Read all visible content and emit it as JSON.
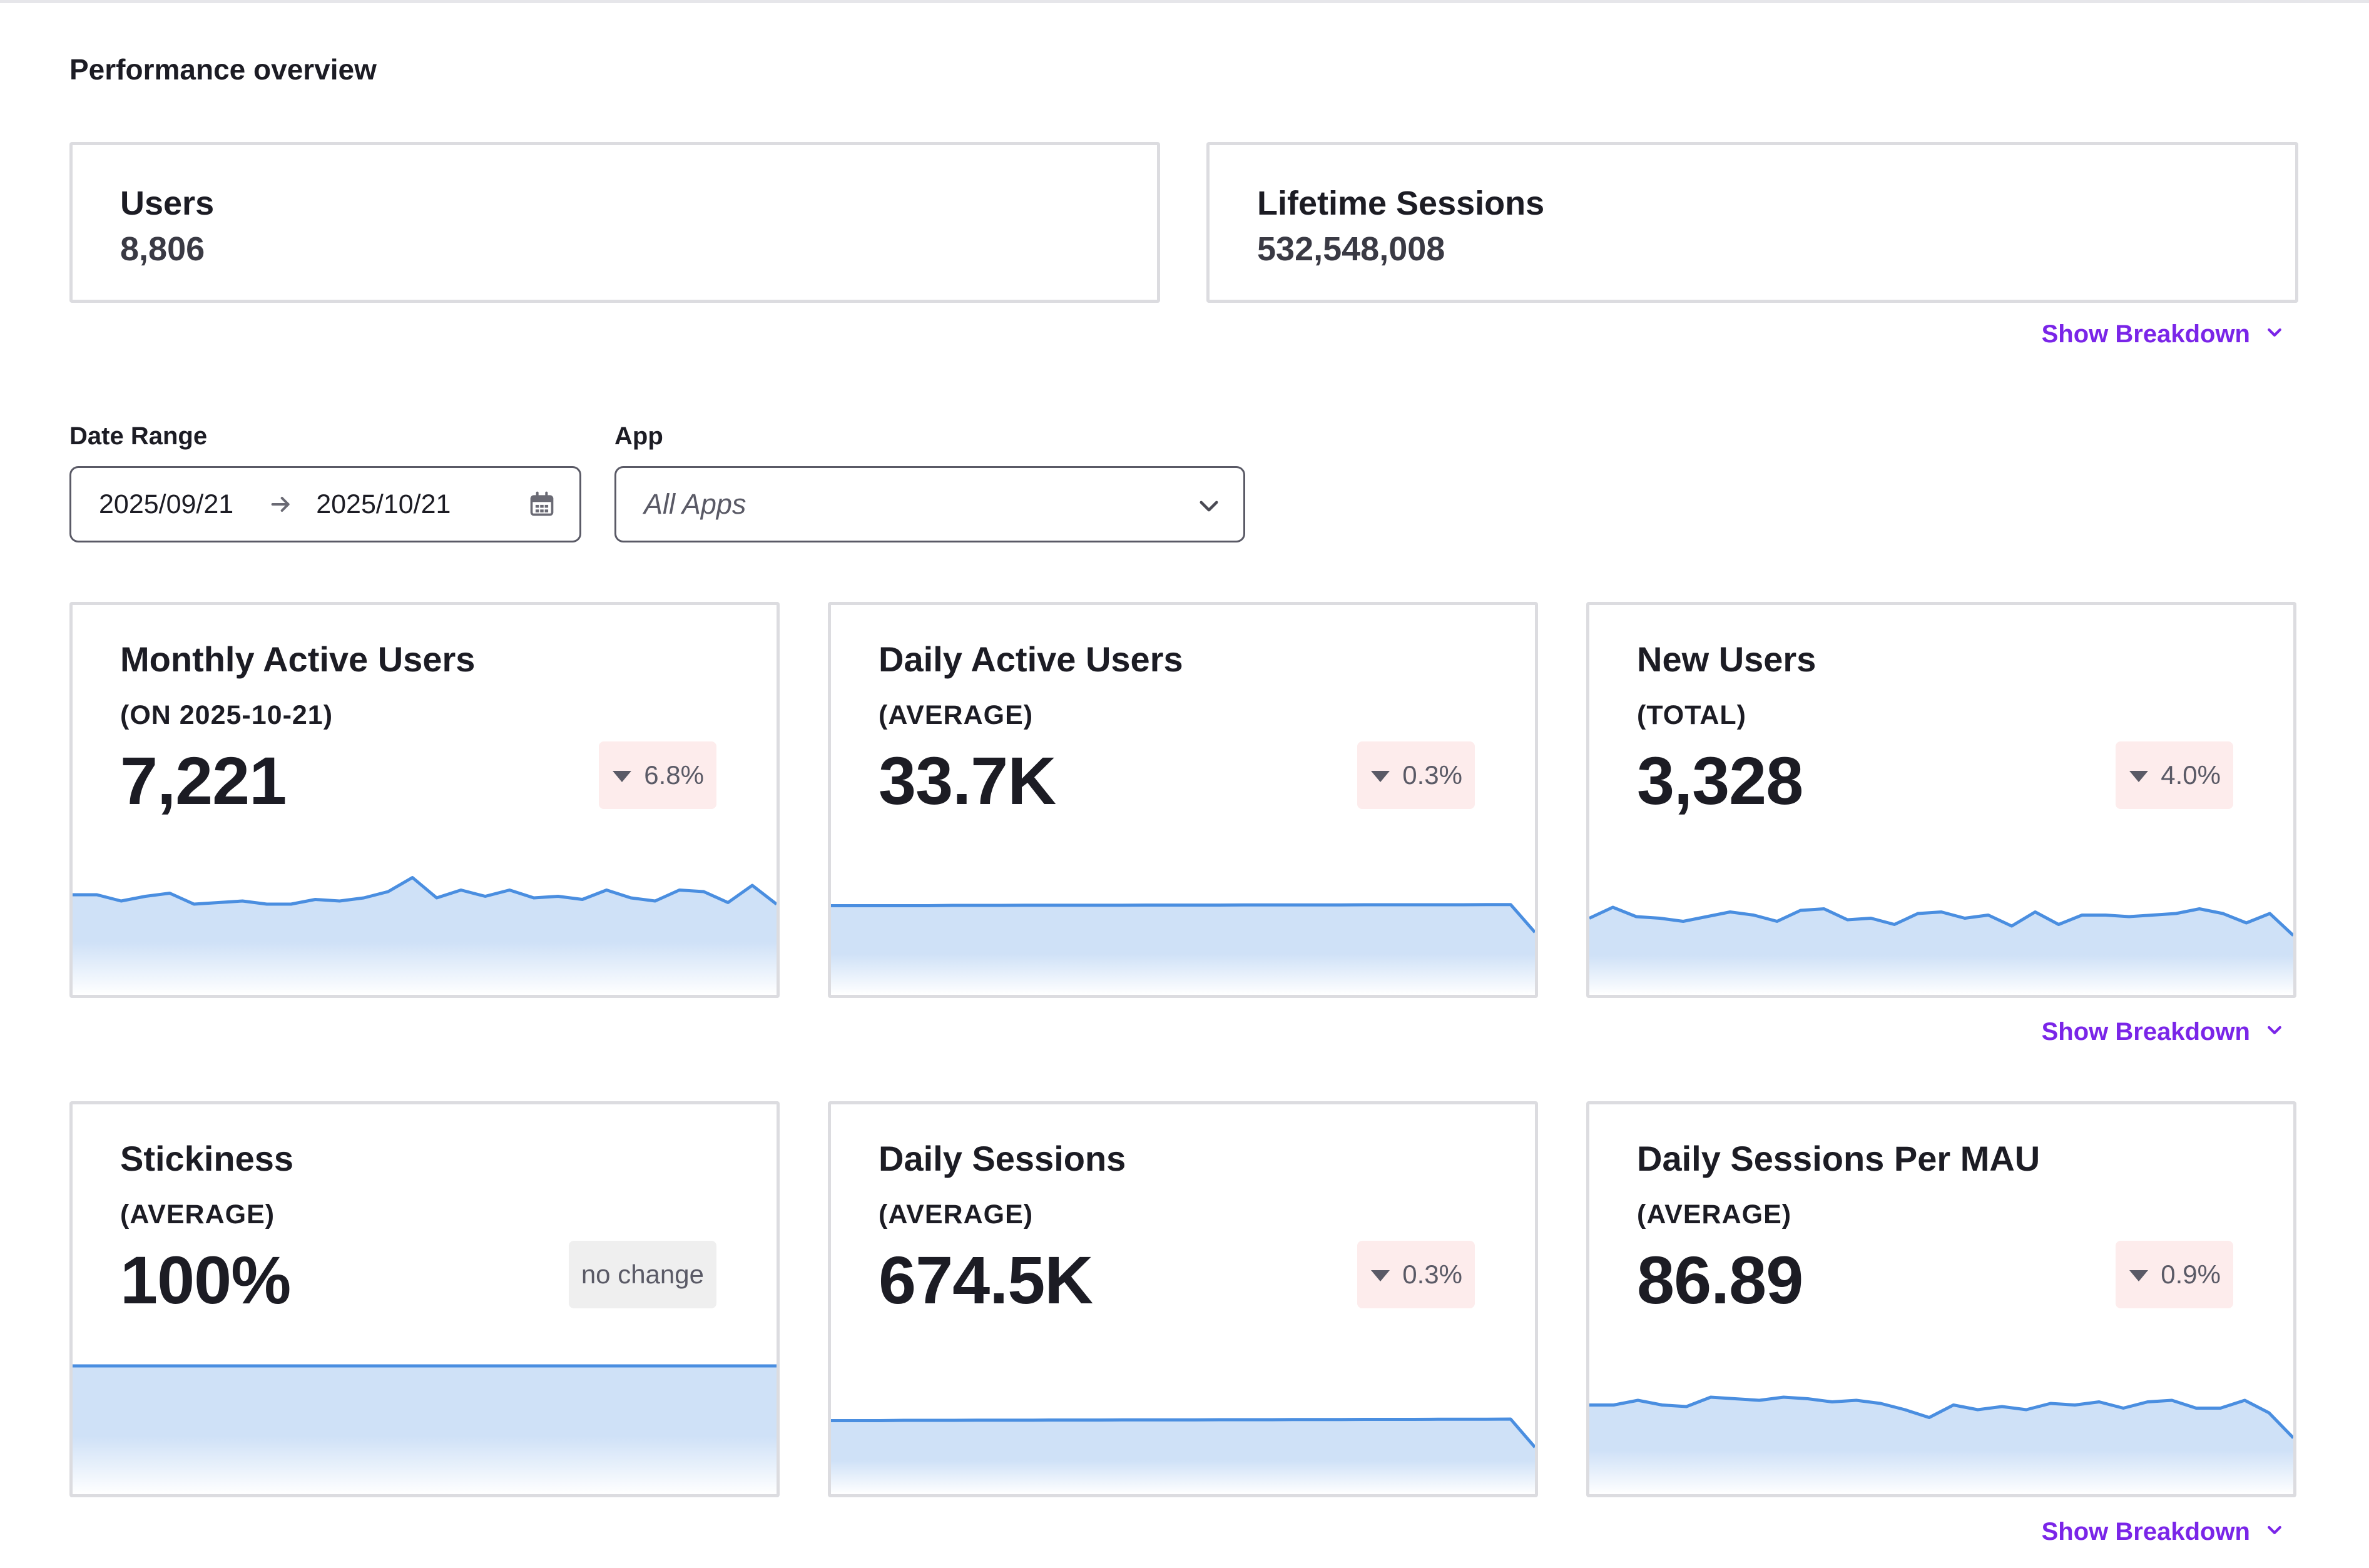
{
  "page": {
    "title": "Performance overview",
    "show_breakdown_label": "Show Breakdown"
  },
  "summary": [
    {
      "label": "Users",
      "value": "8,806"
    },
    {
      "label": "Lifetime Sessions",
      "value": "532,548,008"
    }
  ],
  "filters": {
    "date_range_label": "Date Range",
    "start_date": "2025/09/21",
    "end_date": "2025/10/21",
    "app_label": "App",
    "app_value": "All Apps"
  },
  "icons": {
    "arrow": "arrow-right-icon",
    "calendar": "calendar-icon",
    "dropdown": "chevron-down-icon",
    "change_down": "triangle-down-icon"
  },
  "colors": {
    "accent": "#7a25e8",
    "line": "#4a8ee0",
    "area": "#cfe1f7",
    "badge_down_bg": "#fdecec",
    "badge_flat_bg": "#efefef"
  },
  "metrics": [
    {
      "title": "Monthly Active Users",
      "sub": "(ON 2025-10-21)",
      "value": "7,221",
      "change": "6.8%",
      "direction": "down",
      "trend": [
        64,
        64,
        60,
        63,
        65,
        58,
        59,
        60,
        58,
        58,
        61,
        60,
        62,
        66,
        75,
        62,
        67,
        63,
        67,
        62,
        63,
        61,
        67,
        62,
        60,
        67,
        66,
        59,
        70,
        58
      ]
    },
    {
      "title": "Daily Active Users",
      "sub": "(AVERAGE)",
      "value": "33.7K",
      "change": "0.3%",
      "direction": "down",
      "trend": [
        57,
        57,
        57,
        57,
        57,
        57.2,
        57.2,
        57.2,
        57.3,
        57.3,
        57.3,
        57.3,
        57.3,
        57.4,
        57.4,
        57.4,
        57.4,
        57.5,
        57.5,
        57.5,
        57.5,
        57.5,
        57.6,
        57.6,
        57.6,
        57.6,
        57.6,
        57.7,
        57.7,
        40
      ]
    },
    {
      "title": "New Users",
      "sub": "(TOTAL)",
      "value": "3,328",
      "change": "4.0%",
      "direction": "down",
      "trend": [
        49,
        56,
        50,
        49,
        47,
        50,
        53,
        51,
        47,
        54,
        55,
        48,
        49,
        45,
        52,
        53,
        49,
        51,
        44,
        53,
        45,
        51,
        51,
        50,
        51,
        52,
        55,
        52,
        46,
        52,
        38
      ]
    },
    {
      "title": "Stickiness",
      "sub": "(AVERAGE)",
      "value": "100%",
      "change": "no change",
      "direction": "flat",
      "trend": [
        82,
        82,
        82,
        82,
        82,
        82,
        82,
        82,
        82,
        82,
        82,
        82,
        82,
        82,
        82,
        82,
        82,
        82,
        82,
        82,
        82,
        82,
        82,
        82,
        82,
        82,
        82,
        82,
        82,
        82
      ]
    },
    {
      "title": "Daily Sessions",
      "sub": "(AVERAGE)",
      "value": "674.5K",
      "change": "0.3%",
      "direction": "down",
      "trend": [
        47,
        47,
        47,
        47.2,
        47.2,
        47.2,
        47.3,
        47.3,
        47.3,
        47.4,
        47.4,
        47.4,
        47.5,
        47.5,
        47.5,
        47.5,
        47.6,
        47.6,
        47.6,
        47.7,
        47.7,
        47.7,
        47.8,
        47.8,
        47.8,
        47.9,
        47.9,
        47.9,
        48,
        30
      ]
    },
    {
      "title": "Daily Sessions Per MAU",
      "sub": "(AVERAGE)",
      "value": "86.89",
      "change": "0.9%",
      "direction": "down",
      "trend": [
        57,
        57,
        60,
        57,
        56,
        62,
        61,
        60,
        62,
        61,
        59,
        60,
        58,
        54,
        49,
        57,
        54,
        56,
        54,
        58,
        57,
        59,
        55,
        59,
        60,
        55,
        55,
        60,
        52,
        36
      ]
    }
  ]
}
